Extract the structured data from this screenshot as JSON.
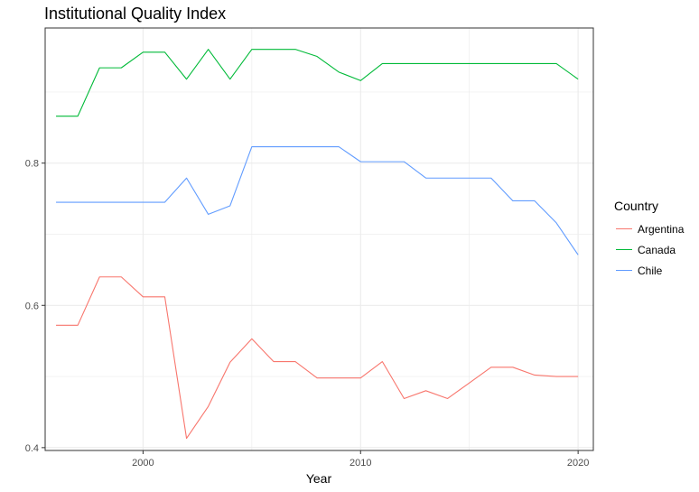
{
  "chart_data": {
    "type": "line",
    "title": "Institutional Quality Index",
    "xlabel": "Year",
    "ylabel": "",
    "xlim": [
      1995.5,
      2020.7
    ],
    "ylim": [
      0.396,
      0.99
    ],
    "x_ticks": [
      2000,
      2010,
      2020
    ],
    "y_ticks": [
      0.4,
      0.6,
      0.8
    ],
    "y_tick_labels": [
      "0.4",
      "0.6",
      "0.8"
    ],
    "grid": true,
    "legend": {
      "title": "Country",
      "position": "right"
    },
    "x": [
      1996,
      1997,
      1998,
      1999,
      2000,
      2001,
      2002,
      2003,
      2004,
      2005,
      2006,
      2007,
      2008,
      2009,
      2010,
      2011,
      2012,
      2013,
      2014,
      2015,
      2016,
      2017,
      2018,
      2019,
      2020
    ],
    "series": [
      {
        "name": "Argentina",
        "color": "#F8766D",
        "values": [
          0.572,
          0.572,
          0.64,
          0.64,
          0.612,
          0.612,
          0.413,
          0.458,
          0.52,
          0.553,
          0.521,
          0.521,
          0.498,
          0.498,
          0.498,
          0.521,
          0.469,
          0.48,
          0.469,
          0.491,
          0.513,
          0.513,
          0.502,
          0.5,
          0.5
        ]
      },
      {
        "name": "Canada",
        "color": "#00BA38",
        "values": [
          0.866,
          0.866,
          0.934,
          0.934,
          0.956,
          0.956,
          0.918,
          0.96,
          0.918,
          0.96,
          0.96,
          0.96,
          0.95,
          0.928,
          0.916,
          0.94,
          0.94,
          0.94,
          0.94,
          0.94,
          0.94,
          0.94,
          0.94,
          0.94,
          0.918
        ]
      },
      {
        "name": "Chile",
        "color": "#619CFF",
        "values": [
          0.745,
          0.745,
          0.745,
          0.745,
          0.745,
          0.745,
          0.779,
          0.728,
          0.74,
          0.823,
          0.823,
          0.823,
          0.823,
          0.823,
          0.802,
          0.802,
          0.802,
          0.779,
          0.779,
          0.779,
          0.779,
          0.747,
          0.747,
          0.716,
          0.671
        ]
      }
    ]
  }
}
